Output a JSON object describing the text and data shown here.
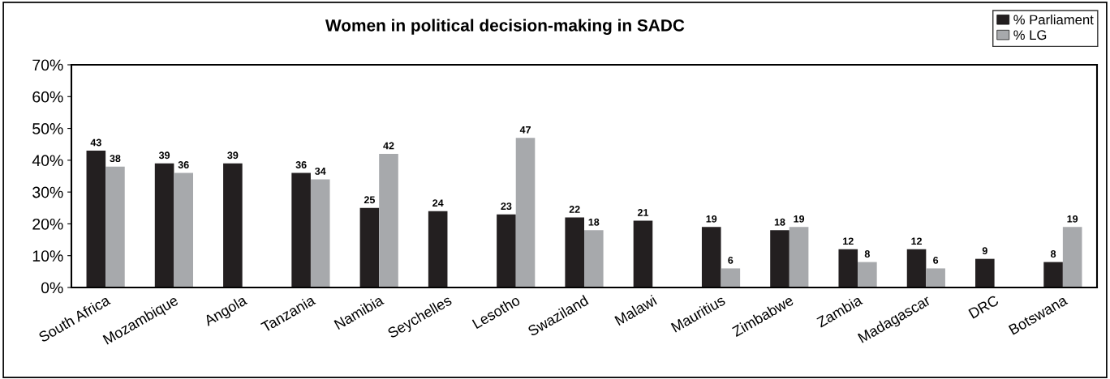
{
  "chart_data": {
    "type": "bar",
    "title": "Women in political decision-making in SADC",
    "categories": [
      "South Africa",
      "Mozambique",
      "Angola",
      "Tanzania",
      "Namibia",
      "Seychelles",
      "Lesotho",
      "Swaziland",
      "Malawi",
      "Mauritius",
      "Zimbabwe",
      "Zambia",
      "Madagascar",
      "DRC",
      "Botswana"
    ],
    "series": [
      {
        "name": "% Parliament",
        "color": "#231f20",
        "values": [
          43,
          39,
          39,
          36,
          25,
          24,
          23,
          22,
          21,
          19,
          18,
          12,
          12,
          9,
          8
        ]
      },
      {
        "name": "% LG",
        "color": "#a7a9ac",
        "values": [
          38,
          36,
          null,
          34,
          42,
          null,
          47,
          18,
          null,
          6,
          19,
          8,
          6,
          null,
          19
        ]
      }
    ],
    "ylim": [
      0,
      70
    ],
    "yticks": [
      {
        "value": 0,
        "label": "0%"
      },
      {
        "value": 10,
        "label": "10%"
      },
      {
        "value": 20,
        "label": "20%"
      },
      {
        "value": 30,
        "label": "30%"
      },
      {
        "value": 40,
        "label": "40%"
      },
      {
        "value": 50,
        "label": "50%"
      },
      {
        "value": 60,
        "label": "60%"
      },
      {
        "value": 70,
        "label": "70%"
      }
    ],
    "data_labels": true,
    "grid": false,
    "legend": "top right"
  }
}
